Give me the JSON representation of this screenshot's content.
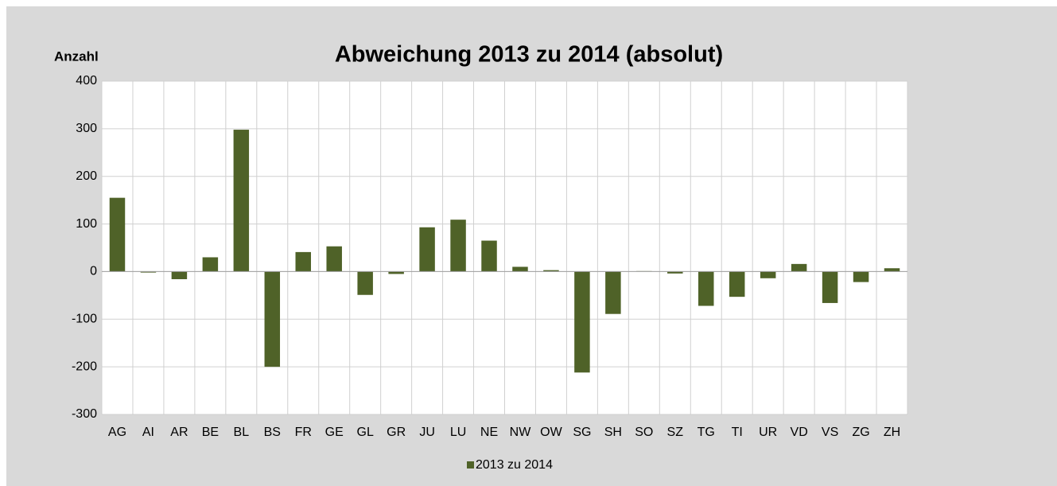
{
  "chart_data": {
    "type": "bar",
    "title": "Abweichung 2013 zu 2014 (absolut)",
    "y_label": "Anzahl",
    "categories": [
      "AG",
      "AI",
      "AR",
      "BE",
      "BL",
      "BS",
      "FR",
      "GE",
      "GL",
      "GR",
      "JU",
      "LU",
      "NE",
      "NW",
      "OW",
      "SG",
      "SH",
      "SO",
      "SZ",
      "TG",
      "TI",
      "UR",
      "VD",
      "VS",
      "ZG",
      "ZH"
    ],
    "series": [
      {
        "name": "2013 zu 2014",
        "color": "#4f6228",
        "values": [
          155,
          -2,
          -16,
          30,
          298,
          -200,
          41,
          53,
          -49,
          -5,
          93,
          109,
          65,
          10,
          3,
          -212,
          -89,
          1,
          -4,
          -72,
          -53,
          -14,
          16,
          -66,
          -22,
          7
        ]
      }
    ],
    "ylim": [
      -300,
      400
    ],
    "yticks": [
      -300,
      -200,
      -100,
      0,
      100,
      200,
      300,
      400
    ],
    "grid": true,
    "legend": "bottom"
  }
}
